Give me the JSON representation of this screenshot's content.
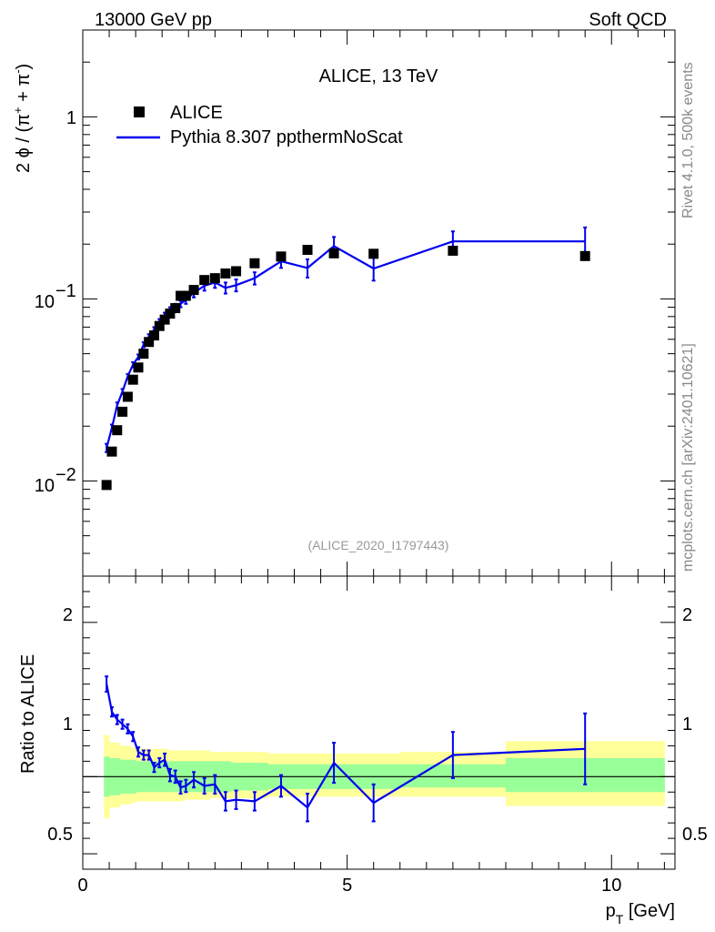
{
  "header": {
    "left": "13000 GeV pp",
    "right": "Soft QCD"
  },
  "side_texts": {
    "rivet": "Rivet 4.1.0,  500k events",
    "mcplots": "mcplots.cern.ch [arXiv:2401.10621]"
  },
  "colors": {
    "mc": "#0000ee",
    "data": "#000000",
    "band_inner": "#99ff99",
    "band_outer": "#ffff99"
  },
  "chart_data": [
    {
      "type": "line",
      "title": "ALICE, 13 TeV",
      "reference": "(ALICE_2020_I1797443)",
      "ylabel": "2 ϕ / (π+ + π-)",
      "yscale": "log",
      "ylim": [
        0.003,
        3
      ],
      "ytick_labels": {
        "major1": "1",
        "major01": "10",
        "major01_exp": "−1",
        "major001": "10",
        "major001_exp": "−2"
      },
      "legend": {
        "data": "ALICE",
        "mc": "Pythia 8.307 ppthermNoScat",
        "position": "top-left"
      },
      "series": [
        {
          "name": "ALICE",
          "style": "markers",
          "x": [
            0.45,
            0.55,
            0.65,
            0.75,
            0.85,
            0.95,
            1.05,
            1.15,
            1.25,
            1.35,
            1.45,
            1.55,
            1.65,
            1.75,
            1.85,
            1.95,
            2.1,
            2.3,
            2.5,
            2.7,
            2.9,
            3.25,
            3.75,
            4.25,
            4.75,
            5.5,
            7.0,
            9.5
          ],
          "y": [
            0.0095,
            0.0145,
            0.019,
            0.024,
            0.029,
            0.036,
            0.042,
            0.05,
            0.058,
            0.063,
            0.071,
            0.077,
            0.083,
            0.089,
            0.104,
            0.104,
            0.112,
            0.127,
            0.13,
            0.138,
            0.142,
            0.157,
            0.171,
            0.186,
            0.178,
            0.177,
            0.184,
            0.172
          ]
        },
        {
          "name": "Pythia 8.307 ppthermNoScat",
          "style": "line",
          "x": [
            0.45,
            0.55,
            0.65,
            0.75,
            0.85,
            0.95,
            1.05,
            1.15,
            1.25,
            1.35,
            1.45,
            1.55,
            1.65,
            1.75,
            1.85,
            1.95,
            2.1,
            2.3,
            2.5,
            2.7,
            2.9,
            3.25,
            3.75,
            4.25,
            4.75,
            5.5,
            7.0,
            9.5
          ],
          "y": [
            0.0152,
            0.0196,
            0.026,
            0.031,
            0.0375,
            0.0435,
            0.048,
            0.056,
            0.062,
            0.068,
            0.075,
            0.081,
            0.087,
            0.09,
            0.094,
            0.099,
            0.108,
            0.118,
            0.123,
            0.115,
            0.119,
            0.13,
            0.161,
            0.148,
            0.195,
            0.147,
            0.207,
            0.207
          ],
          "yerr": [
            0.0008,
            0.0008,
            0.001,
            0.001,
            0.0012,
            0.0014,
            0.0015,
            0.0018,
            0.002,
            0.002,
            0.0025,
            0.003,
            0.003,
            0.004,
            0.004,
            0.005,
            0.006,
            0.007,
            0.008,
            0.008,
            0.009,
            0.01,
            0.013,
            0.017,
            0.024,
            0.021,
            0.028,
            0.04
          ]
        }
      ]
    },
    {
      "type": "line",
      "ylabel": "Ratio to ALICE",
      "xlabel": "p_T [GeV]",
      "ylim": [
        0.4,
        2.3
      ],
      "xlim": [
        0,
        11.2
      ],
      "xticks": [
        0,
        5,
        10
      ],
      "ytick_labels": [
        "0.5",
        "1",
        "2"
      ],
      "bands": {
        "x_edges": [
          0.4,
          0.5,
          0.6,
          0.7,
          0.8,
          0.9,
          1.0,
          1.1,
          1.2,
          1.3,
          1.4,
          1.5,
          1.6,
          1.7,
          1.8,
          1.9,
          2.0,
          2.2,
          2.4,
          2.6,
          2.8,
          3.0,
          3.5,
          4.0,
          4.5,
          5.0,
          6.0,
          8.0,
          11.0
        ],
        "inner_lo": [
          0.87,
          0.88,
          0.88,
          0.89,
          0.89,
          0.89,
          0.9,
          0.9,
          0.9,
          0.9,
          0.9,
          0.9,
          0.9,
          0.9,
          0.9,
          0.9,
          0.9,
          0.9,
          0.9,
          0.9,
          0.91,
          0.91,
          0.92,
          0.92,
          0.92,
          0.92,
          0.93,
          0.9
        ],
        "inner_hi": [
          1.13,
          1.12,
          1.12,
          1.11,
          1.11,
          1.11,
          1.1,
          1.1,
          1.1,
          1.1,
          1.1,
          1.1,
          1.1,
          1.1,
          1.1,
          1.1,
          1.1,
          1.1,
          1.1,
          1.1,
          1.09,
          1.09,
          1.08,
          1.08,
          1.08,
          1.08,
          1.08,
          1.12
        ],
        "outer_lo": [
          0.73,
          0.8,
          0.8,
          0.82,
          0.82,
          0.83,
          0.84,
          0.84,
          0.84,
          0.84,
          0.84,
          0.84,
          0.84,
          0.84,
          0.84,
          0.85,
          0.85,
          0.85,
          0.86,
          0.86,
          0.86,
          0.86,
          0.87,
          0.87,
          0.87,
          0.87,
          0.87,
          0.81
        ],
        "outer_hi": [
          1.27,
          1.22,
          1.22,
          1.2,
          1.2,
          1.19,
          1.19,
          1.18,
          1.18,
          1.18,
          1.18,
          1.18,
          1.17,
          1.17,
          1.17,
          1.17,
          1.17,
          1.17,
          1.16,
          1.16,
          1.16,
          1.16,
          1.15,
          1.15,
          1.15,
          1.15,
          1.16,
          1.23
        ]
      },
      "series": [
        {
          "name": "Pythia 8.307 ppthermNoScat / ALICE",
          "x": [
            0.45,
            0.55,
            0.65,
            0.75,
            0.85,
            0.95,
            1.05,
            1.15,
            1.25,
            1.35,
            1.45,
            1.55,
            1.65,
            1.75,
            1.85,
            1.95,
            2.1,
            2.3,
            2.5,
            2.7,
            2.9,
            3.25,
            3.75,
            4.25,
            4.75,
            5.5,
            7.0,
            9.5
          ],
          "y": [
            1.6,
            1.42,
            1.37,
            1.34,
            1.31,
            1.26,
            1.16,
            1.14,
            1.14,
            1.06,
            1.09,
            1.11,
            1.01,
            1.0,
            0.93,
            0.94,
            0.98,
            0.94,
            0.95,
            0.84,
            0.85,
            0.84,
            0.94,
            0.8,
            1.09,
            0.83,
            1.14,
            1.18
          ],
          "yerr": [
            0.05,
            0.03,
            0.03,
            0.03,
            0.03,
            0.03,
            0.03,
            0.03,
            0.03,
            0.03,
            0.03,
            0.04,
            0.04,
            0.04,
            0.04,
            0.04,
            0.05,
            0.05,
            0.06,
            0.06,
            0.06,
            0.06,
            0.07,
            0.09,
            0.13,
            0.12,
            0.15,
            0.23
          ]
        }
      ]
    }
  ]
}
